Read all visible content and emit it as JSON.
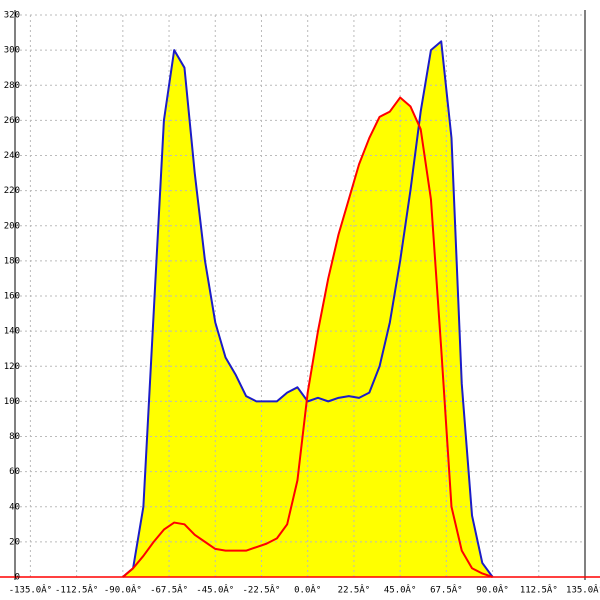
{
  "chart_data": {
    "type": "area",
    "x": [
      -90,
      -85,
      -80,
      -75,
      -70,
      -65,
      -60,
      -55,
      -50,
      -45,
      -40,
      -35,
      -30,
      -25,
      -20,
      -15,
      -10,
      -5,
      0,
      5,
      10,
      15,
      20,
      25,
      30,
      35,
      40,
      45,
      50,
      55,
      60,
      65,
      70,
      75,
      80,
      85,
      90
    ],
    "series": [
      {
        "color": "#1c1cc8",
        "fill": "#ffff00",
        "values": [
          0,
          5,
          40,
          150,
          260,
          300,
          290,
          230,
          180,
          145,
          125,
          115,
          103,
          100,
          100,
          100,
          105,
          108,
          100,
          102,
          100,
          102,
          103,
          102,
          105,
          120,
          145,
          180,
          220,
          265,
          300,
          305,
          250,
          110,
          35,
          8,
          0
        ]
      },
      {
        "color": "#ff0000",
        "fill": "#ffff00",
        "values": [
          0,
          5,
          12,
          20,
          27,
          31,
          30,
          24,
          20,
          16,
          15,
          15,
          15,
          17,
          19,
          22,
          30,
          55,
          105,
          140,
          170,
          195,
          215,
          235,
          250,
          262,
          265,
          273,
          268,
          255,
          215,
          130,
          40,
          15,
          5,
          2,
          0
        ]
      }
    ],
    "xlim": [
      -142.5,
      135
    ],
    "ylim": [
      0,
      320
    ],
    "xticks": [
      {
        "value": -135,
        "label": "-135.0Â°"
      },
      {
        "value": -112.5,
        "label": "-112.5Â°"
      },
      {
        "value": -90,
        "label": "-90.0Â°"
      },
      {
        "value": -67.5,
        "label": "-67.5Â°"
      },
      {
        "value": -45,
        "label": "-45.0Â°"
      },
      {
        "value": -22.5,
        "label": "-22.5Â°"
      },
      {
        "value": 0,
        "label": "0.0Â°"
      },
      {
        "value": 22.5,
        "label": "22.5Â°"
      },
      {
        "value": 45,
        "label": "45.0Â°"
      },
      {
        "value": 67.5,
        "label": "67.5Â°"
      },
      {
        "value": 90,
        "label": "90.0Â°"
      },
      {
        "value": 112.5,
        "label": "112.5Â°"
      },
      {
        "value": 135,
        "label": "135.0Â°"
      }
    ],
    "yticks": [
      0,
      20,
      40,
      60,
      80,
      100,
      120,
      140,
      160,
      180,
      200,
      220,
      240,
      260,
      280,
      300,
      320
    ],
    "grid": true
  }
}
